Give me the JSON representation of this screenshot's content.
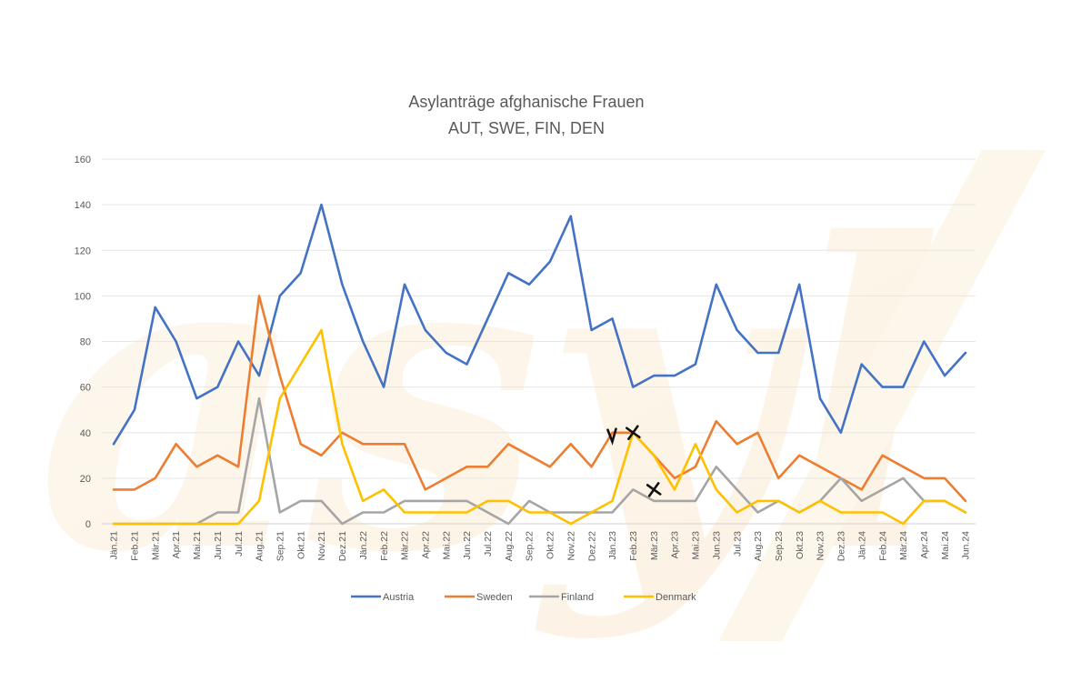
{
  "chart_data": {
    "type": "line",
    "title": "Asylanträge afghanische Frauen",
    "subtitle": "AUT, SWE, FIN, DEN",
    "xlabel": "",
    "ylabel": "",
    "ylim": [
      0,
      160
    ],
    "yticks": [
      0,
      20,
      40,
      60,
      80,
      100,
      120,
      140,
      160
    ],
    "grid": true,
    "legend_position": "bottom",
    "categories": [
      "Jän.21",
      "Feb.21",
      "Mär.21",
      "Apr.21",
      "Mai.21",
      "Jun.21",
      "Jul.21",
      "Aug.21",
      "Sep.21",
      "Okt.21",
      "Nov.21",
      "Dez.21",
      "Jän.22",
      "Feb.22",
      "Mär.22",
      "Apr.22",
      "Mai.22",
      "Jun.22",
      "Jul.22",
      "Aug.22",
      "Sep.22",
      "Okt.22",
      "Nov.22",
      "Dez.22",
      "Jän.23",
      "Feb.23",
      "Mär.23",
      "Apr.23",
      "Mai.23",
      "Jun.23",
      "Jul.23",
      "Aug.23",
      "Sep.23",
      "Okt.23",
      "Nov.23",
      "Dez.23",
      "Jän.24",
      "Feb.24",
      "Mär.24",
      "Apr.24",
      "Mai.24",
      "Jun.24"
    ],
    "series": [
      {
        "name": "Austria",
        "color": "#4472C4",
        "values": [
          35,
          50,
          95,
          80,
          55,
          60,
          80,
          65,
          100,
          110,
          140,
          105,
          80,
          60,
          105,
          85,
          75,
          70,
          90,
          110,
          105,
          115,
          135,
          85,
          90,
          60,
          65,
          65,
          70,
          105,
          85,
          75,
          75,
          105,
          55,
          40,
          70,
          60,
          60,
          80,
          65,
          75
        ]
      },
      {
        "name": "Sweden",
        "color": "#ED7D31",
        "values": [
          15,
          15,
          20,
          35,
          25,
          30,
          25,
          100,
          65,
          35,
          30,
          40,
          35,
          35,
          35,
          15,
          20,
          25,
          25,
          35,
          30,
          25,
          35,
          25,
          40,
          40,
          30,
          20,
          25,
          45,
          35,
          40,
          20,
          30,
          25,
          20,
          15,
          30,
          25,
          20,
          20,
          10
        ]
      },
      {
        "name": "Finland",
        "color": "#A5A5A5",
        "values": [
          0,
          0,
          0,
          0,
          0,
          5,
          5,
          55,
          5,
          10,
          10,
          0,
          5,
          5,
          10,
          10,
          10,
          10,
          5,
          0,
          10,
          5,
          5,
          5,
          5,
          15,
          10,
          10,
          10,
          25,
          15,
          5,
          10,
          5,
          10,
          20,
          10,
          15,
          20,
          10,
          10,
          5
        ]
      },
      {
        "name": "Denmark",
        "color": "#FFC000",
        "values": [
          0,
          0,
          0,
          0,
          0,
          0,
          0,
          10,
          55,
          70,
          85,
          35,
          10,
          15,
          5,
          5,
          5,
          5,
          10,
          10,
          5,
          5,
          0,
          5,
          10,
          40,
          30,
          15,
          35,
          15,
          5,
          10,
          10,
          5,
          10,
          5,
          5,
          5,
          0,
          10,
          10,
          5
        ]
      }
    ],
    "annotations": [
      {
        "x": "Jän.23",
        "y": 38,
        "mark": "check"
      },
      {
        "x": "Feb.23",
        "y": 40,
        "mark": "cross"
      },
      {
        "x": "Mär.23",
        "y": 15,
        "mark": "cross"
      }
    ]
  }
}
